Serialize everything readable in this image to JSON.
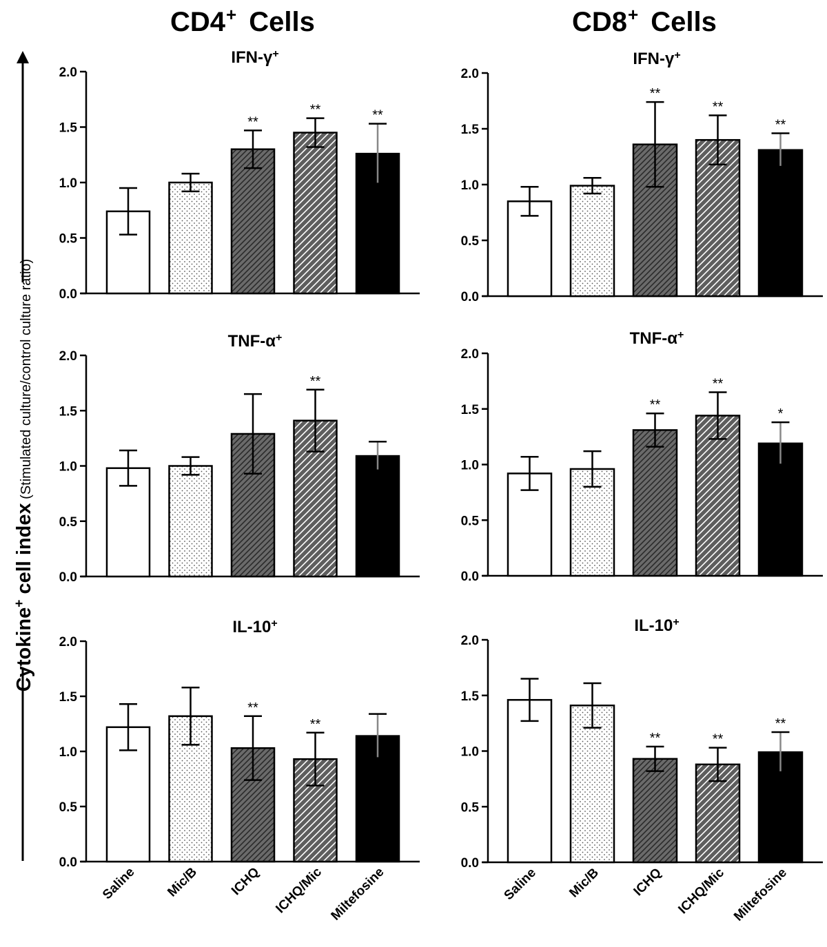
{
  "headings": {
    "cd4": {
      "main": "CD4",
      "sup": "+",
      "rest": "Cells"
    },
    "cd8": {
      "main": "CD8",
      "sup": "+",
      "rest": "Cells"
    }
  },
  "y_axis_label": {
    "bold": "Cytokine",
    "sup": "+",
    "bold_tail": " cell index",
    "normal": " (Stimulated culture/control culture ratio)"
  },
  "colors": {
    "axis": "#000000",
    "ichq": "#666666",
    "miltefosine": "#000000",
    "saline": "#ffffff"
  },
  "chart_data": [
    {
      "type": "bar",
      "id": "cd4-ifng",
      "column": "CD4+ Cells",
      "title": {
        "main": "IFN-γ",
        "sup": "+"
      },
      "categories": [
        "Saline",
        "Mic/B",
        "ICHQ",
        "ICHQ/Mic",
        "Miltefosine"
      ],
      "values": [
        0.74,
        1.0,
        1.3,
        1.45,
        1.26
      ],
      "error": [
        0.21,
        0.08,
        0.17,
        0.13,
        0.27
      ],
      "significance": [
        "",
        "",
        "**",
        "**",
        "**"
      ],
      "ylim": [
        0,
        2.0
      ],
      "yticks": [
        "0.0",
        "0.5",
        "1.0",
        "1.5",
        "2.0"
      ]
    },
    {
      "type": "bar",
      "id": "cd8-ifng",
      "column": "CD8+ Cells",
      "title": {
        "main": "IFN-γ",
        "sup": "+"
      },
      "categories": [
        "Saline",
        "Mic/B",
        "ICHQ",
        "ICHQ/Mic",
        "Miltefosine"
      ],
      "values": [
        0.85,
        0.99,
        1.36,
        1.4,
        1.31
      ],
      "error": [
        0.13,
        0.07,
        0.38,
        0.22,
        0.15
      ],
      "significance": [
        "",
        "",
        "**",
        "**",
        "**"
      ],
      "ylim": [
        0,
        2.0
      ],
      "yticks": [
        "0.0",
        "0.5",
        "1.0",
        "1.5",
        "2.0"
      ]
    },
    {
      "type": "bar",
      "id": "cd4-tnfa",
      "column": "CD4+ Cells",
      "title": {
        "main": "TNF-α",
        "sup": "+"
      },
      "categories": [
        "Saline",
        "Mic/B",
        "ICHQ",
        "ICHQ/Mic",
        "Miltefosine"
      ],
      "values": [
        0.98,
        1.0,
        1.29,
        1.41,
        1.09
      ],
      "error": [
        0.16,
        0.08,
        0.36,
        0.28,
        0.13
      ],
      "significance": [
        "",
        "",
        "",
        "**",
        ""
      ],
      "ylim": [
        0,
        2.0
      ],
      "yticks": [
        "0.0",
        "0.5",
        "1.0",
        "1.5",
        "2.0"
      ]
    },
    {
      "type": "bar",
      "id": "cd8-tnfa",
      "column": "CD8+ Cells",
      "title": {
        "main": "TNF-α",
        "sup": "+"
      },
      "categories": [
        "Saline",
        "Mic/B",
        "ICHQ",
        "ICHQ/Mic",
        "Miltefosine"
      ],
      "values": [
        0.92,
        0.96,
        1.31,
        1.44,
        1.19
      ],
      "error": [
        0.15,
        0.16,
        0.15,
        0.21,
        0.19
      ],
      "significance": [
        "",
        "",
        "**",
        "**",
        "*"
      ],
      "ylim": [
        0,
        2.0
      ],
      "yticks": [
        "0.0",
        "0.5",
        "1.0",
        "1.5",
        "2.0"
      ]
    },
    {
      "type": "bar",
      "id": "cd4-il10",
      "column": "CD4+ Cells",
      "title": {
        "main": "IL-10",
        "sup": "+"
      },
      "categories": [
        "Saline",
        "Mic/B",
        "ICHQ",
        "ICHQ/Mic",
        "Miltefosine"
      ],
      "values": [
        1.22,
        1.32,
        1.03,
        0.93,
        1.14
      ],
      "error": [
        0.21,
        0.26,
        0.29,
        0.24,
        0.2
      ],
      "significance": [
        "",
        "",
        "**",
        "**",
        ""
      ],
      "ylim": [
        0,
        2.0
      ],
      "yticks": [
        "0.0",
        "0.5",
        "1.0",
        "1.5",
        "2.0"
      ]
    },
    {
      "type": "bar",
      "id": "cd8-il10",
      "column": "CD8+ Cells",
      "title": {
        "main": "IL-10",
        "sup": "+"
      },
      "categories": [
        "Saline",
        "Mic/B",
        "ICHQ",
        "ICHQ/Mic",
        "Miltefosine"
      ],
      "values": [
        1.46,
        1.41,
        0.93,
        0.88,
        0.99
      ],
      "error": [
        0.19,
        0.2,
        0.11,
        0.15,
        0.18
      ],
      "significance": [
        "",
        "",
        "**",
        "**",
        "**"
      ],
      "ylim": [
        0,
        2.0
      ],
      "yticks": [
        "0.0",
        "0.5",
        "1.0",
        "1.5",
        "2.0"
      ]
    }
  ]
}
